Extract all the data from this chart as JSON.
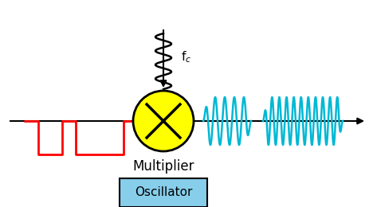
{
  "bg_color": "#ffffff",
  "line_color": "#000000",
  "multiplier_circle_color": "#ffff00",
  "multiplier_label": "Multiplier",
  "oscillator_box_color": "#87ceeb",
  "oscillator_text": "Oscillator",
  "digital_signal_color": "#ff0000",
  "carrier_signal_color": "#00b8d4",
  "fig_width": 4.73,
  "fig_height": 2.6,
  "dpi": 100
}
